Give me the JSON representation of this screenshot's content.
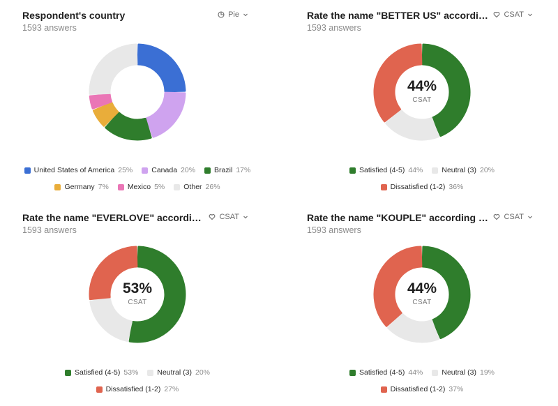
{
  "charts": [
    {
      "title": "Respondent's country",
      "subtitle": "1593 answers",
      "mode_label": "Pie",
      "mode_icon": "pie-chart-icon",
      "center_value": "",
      "center_label": ""
    },
    {
      "title": "Rate the name \"BETTER US\" according to how you'd like it",
      "subtitle": "1593 answers",
      "mode_label": "CSAT",
      "mode_icon": "heart-icon",
      "center_value": "44%",
      "center_label": "CSAT"
    },
    {
      "title": "Rate the name \"EVERLOVE\" according to how you'd like it",
      "subtitle": "1593 answers",
      "mode_label": "CSAT",
      "mode_icon": "heart-icon",
      "center_value": "53%",
      "center_label": "CSAT"
    },
    {
      "title": "Rate the name \"KOUPLE\" according to how you'd like it",
      "subtitle": "1593 answers",
      "mode_label": "CSAT",
      "mode_icon": "heart-icon",
      "center_value": "44%",
      "center_label": "CSAT"
    }
  ],
  "chart_data": [
    {
      "type": "pie",
      "title": "Respondent's country",
      "start_angle_deg": 90,
      "slices": [
        {
          "label": "United States of America",
          "value": 25,
          "display": "25%",
          "color": "#3b6fd4"
        },
        {
          "label": "Canada",
          "value": 20,
          "display": "20%",
          "color": "#cfa3ef"
        },
        {
          "label": "Brazil",
          "value": 17,
          "display": "17%",
          "color": "#2f7d2c"
        },
        {
          "label": "Germany",
          "value": 7,
          "display": "7%",
          "color": "#e9ad3a"
        },
        {
          "label": "Mexico",
          "value": 5,
          "display": "5%",
          "color": "#ea76b6"
        },
        {
          "label": "Other",
          "value": 26,
          "display": "26%",
          "color": "#e8e8e8"
        }
      ],
      "legend_rows": [
        [
          0,
          1,
          2
        ],
        [
          3,
          4,
          5
        ]
      ]
    },
    {
      "type": "pie",
      "title": "Rate the name \"BETTER US\" according to how you'd like it",
      "start_angle_deg": 90,
      "slices": [
        {
          "label": "Satisfied (4-5)",
          "value": 44,
          "display": "44%",
          "color": "#2f7d2c"
        },
        {
          "label": "Neutral (3)",
          "value": 20,
          "display": "20%",
          "color": "#e8e8e8"
        },
        {
          "label": "Dissatisfied (1-2)",
          "value": 36,
          "display": "36%",
          "color": "#e0644f"
        }
      ],
      "legend_rows": [
        [
          0,
          1
        ],
        [
          2
        ]
      ]
    },
    {
      "type": "pie",
      "title": "Rate the name \"EVERLOVE\" according to how you'd like it",
      "start_angle_deg": 90,
      "slices": [
        {
          "label": "Satisfied (4-5)",
          "value": 53,
          "display": "53%",
          "color": "#2f7d2c"
        },
        {
          "label": "Neutral (3)",
          "value": 20,
          "display": "20%",
          "color": "#e8e8e8"
        },
        {
          "label": "Dissatisfied (1-2)",
          "value": 27,
          "display": "27%",
          "color": "#e0644f"
        }
      ],
      "legend_rows": [
        [
          0,
          1
        ],
        [
          2
        ]
      ]
    },
    {
      "type": "pie",
      "title": "Rate the name \"KOUPLE\" according to how you'd like it",
      "start_angle_deg": 90,
      "slices": [
        {
          "label": "Satisfied (4-5)",
          "value": 44,
          "display": "44%",
          "color": "#2f7d2c"
        },
        {
          "label": "Neutral (3)",
          "value": 19,
          "display": "19%",
          "color": "#e8e8e8"
        },
        {
          "label": "Dissatisfied (1-2)",
          "value": 37,
          "display": "37%",
          "color": "#e0644f"
        }
      ],
      "legend_rows": [
        [
          0,
          1
        ],
        [
          2
        ]
      ]
    }
  ]
}
